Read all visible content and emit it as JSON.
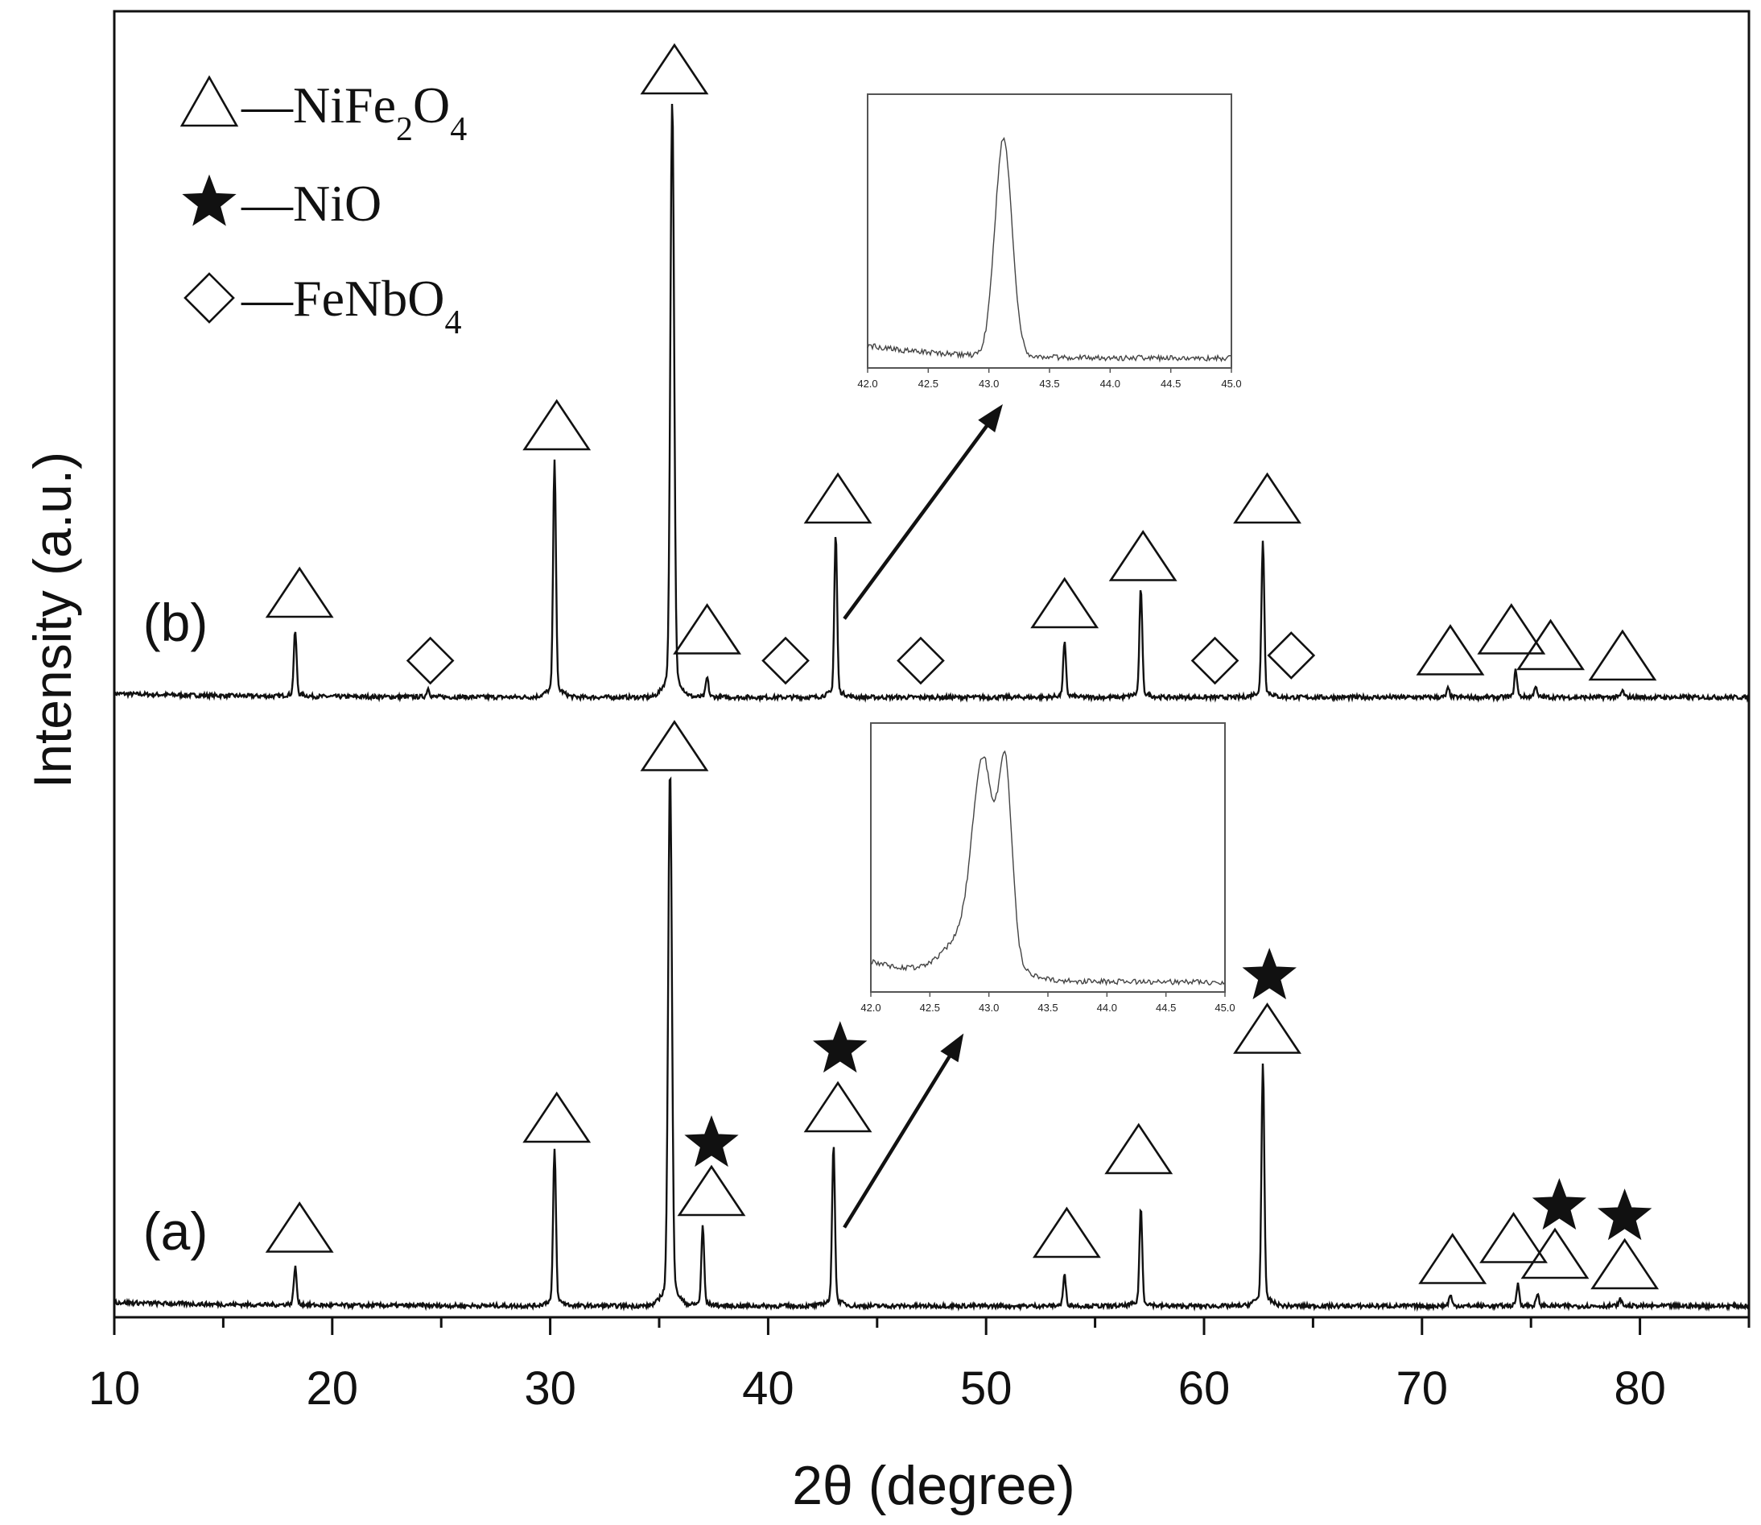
{
  "chart_data": {
    "type": "line",
    "xlabel": "2θ (degree)",
    "ylabel": "Intensity (a.u.)",
    "xlim": [
      10,
      85
    ],
    "x_ticks": [
      10,
      20,
      30,
      40,
      50,
      60,
      70,
      80
    ],
    "legend": {
      "placement": "top-left",
      "entries": [
        {
          "marker": "triangle-open",
          "dash": "—",
          "phase": "NiFe",
          "sub1": "2",
          "mid": "O",
          "sub2": "4"
        },
        {
          "marker": "star-filled",
          "dash": "—",
          "phase": "NiO",
          "sub1": "",
          "mid": "",
          "sub2": ""
        },
        {
          "marker": "diamond-open",
          "dash": "—",
          "phase": "FeNb",
          "sub1": "",
          "mid": "O",
          "sub2": "4"
        }
      ]
    },
    "series": [
      {
        "name": "(b)",
        "peaks": [
          {
            "x": 18.3,
            "h": 0.06
          },
          {
            "x": 24.4,
            "h": 0.008
          },
          {
            "x": 30.2,
            "h": 0.22
          },
          {
            "x": 35.6,
            "h": 0.55
          },
          {
            "x": 37.2,
            "h": 0.018
          },
          {
            "x": 43.1,
            "h": 0.15
          },
          {
            "x": 53.6,
            "h": 0.05
          },
          {
            "x": 57.1,
            "h": 0.1
          },
          {
            "x": 62.7,
            "h": 0.145
          },
          {
            "x": 71.2,
            "h": 0.008
          },
          {
            "x": 74.3,
            "h": 0.025
          },
          {
            "x": 75.2,
            "h": 0.01
          },
          {
            "x": 79.2,
            "h": 0.006
          }
        ],
        "markers": [
          {
            "x": 18.5,
            "kind": "triangle",
            "level": 0.1
          },
          {
            "x": 24.5,
            "kind": "diamond",
            "level": 0.035
          },
          {
            "x": 30.3,
            "kind": "triangle",
            "level": 0.26
          },
          {
            "x": 35.7,
            "kind": "triangle",
            "level": 0.6
          },
          {
            "x": 37.2,
            "kind": "triangle",
            "level": 0.065
          },
          {
            "x": 40.8,
            "kind": "diamond",
            "level": 0.035
          },
          {
            "x": 43.2,
            "kind": "triangle",
            "level": 0.19
          },
          {
            "x": 47.0,
            "kind": "diamond",
            "level": 0.035
          },
          {
            "x": 53.6,
            "kind": "triangle",
            "level": 0.09
          },
          {
            "x": 57.2,
            "kind": "triangle",
            "level": 0.135
          },
          {
            "x": 60.5,
            "kind": "diamond",
            "level": 0.035
          },
          {
            "x": 62.9,
            "kind": "triangle",
            "level": 0.19
          },
          {
            "x": 64.0,
            "kind": "diamond",
            "level": 0.04
          },
          {
            "x": 71.3,
            "kind": "triangle",
            "level": 0.045
          },
          {
            "x": 74.1,
            "kind": "triangle",
            "level": 0.065
          },
          {
            "x": 75.9,
            "kind": "triangle",
            "level": 0.05
          },
          {
            "x": 79.2,
            "kind": "triangle",
            "level": 0.04
          }
        ]
      },
      {
        "name": "(a)",
        "peaks": [
          {
            "x": 18.3,
            "h": 0.035
          },
          {
            "x": 30.2,
            "h": 0.145
          },
          {
            "x": 35.5,
            "h": 0.495
          },
          {
            "x": 37.0,
            "h": 0.073
          },
          {
            "x": 43.0,
            "h": 0.15
          },
          {
            "x": 53.6,
            "h": 0.028
          },
          {
            "x": 57.1,
            "h": 0.09
          },
          {
            "x": 62.7,
            "h": 0.225
          },
          {
            "x": 71.3,
            "h": 0.01
          },
          {
            "x": 74.4,
            "h": 0.02
          },
          {
            "x": 75.3,
            "h": 0.01
          },
          {
            "x": 79.1,
            "h": 0.006
          }
        ],
        "markers": [
          {
            "x": 18.5,
            "kind": "triangle",
            "level": 0.075
          },
          {
            "x": 30.3,
            "kind": "triangle",
            "level": 0.18
          },
          {
            "x": 35.7,
            "kind": "triangle",
            "level": 0.535
          },
          {
            "x": 37.4,
            "kind": "triangle",
            "level": 0.11
          },
          {
            "x": 37.4,
            "kind": "star",
            "level": 0.155
          },
          {
            "x": 43.2,
            "kind": "triangle",
            "level": 0.19
          },
          {
            "x": 43.3,
            "kind": "star",
            "level": 0.245
          },
          {
            "x": 53.7,
            "kind": "triangle",
            "level": 0.07
          },
          {
            "x": 57.0,
            "kind": "triangle",
            "level": 0.15
          },
          {
            "x": 62.9,
            "kind": "triangle",
            "level": 0.265
          },
          {
            "x": 63.0,
            "kind": "star",
            "level": 0.315
          },
          {
            "x": 71.4,
            "kind": "triangle",
            "level": 0.045
          },
          {
            "x": 74.2,
            "kind": "triangle",
            "level": 0.065
          },
          {
            "x": 76.1,
            "kind": "triangle",
            "level": 0.05
          },
          {
            "x": 76.3,
            "kind": "star",
            "level": 0.095
          },
          {
            "x": 79.3,
            "kind": "triangle",
            "level": 0.04
          },
          {
            "x": 79.3,
            "kind": "star",
            "level": 0.085
          }
        ]
      }
    ],
    "insets": [
      {
        "series": "(b)",
        "xlim": [
          42.0,
          45.0
        ],
        "x_ticks": [
          "42.0",
          "42.5",
          "43.0",
          "43.5",
          "44.0",
          "44.5",
          "45.0"
        ],
        "peaks": [
          {
            "x": 43.12,
            "w": 0.1,
            "h": 1.0
          }
        ],
        "arrow_from_x": 43.2,
        "baseline_level": 0.06
      },
      {
        "series": "(a)",
        "xlim": [
          42.0,
          45.0
        ],
        "x_ticks": [
          "42.0",
          "42.5",
          "43.0",
          "43.5",
          "44.0",
          "44.5",
          "45.0"
        ],
        "peaks": [
          {
            "x": 42.95,
            "w": 0.12,
            "h": 0.8
          },
          {
            "x": 43.14,
            "w": 0.08,
            "h": 0.85
          },
          {
            "x": 42.9,
            "w": 0.32,
            "h": 0.25
          }
        ],
        "arrow_from_x": 43.2,
        "baseline_level": 0.1
      }
    ]
  }
}
